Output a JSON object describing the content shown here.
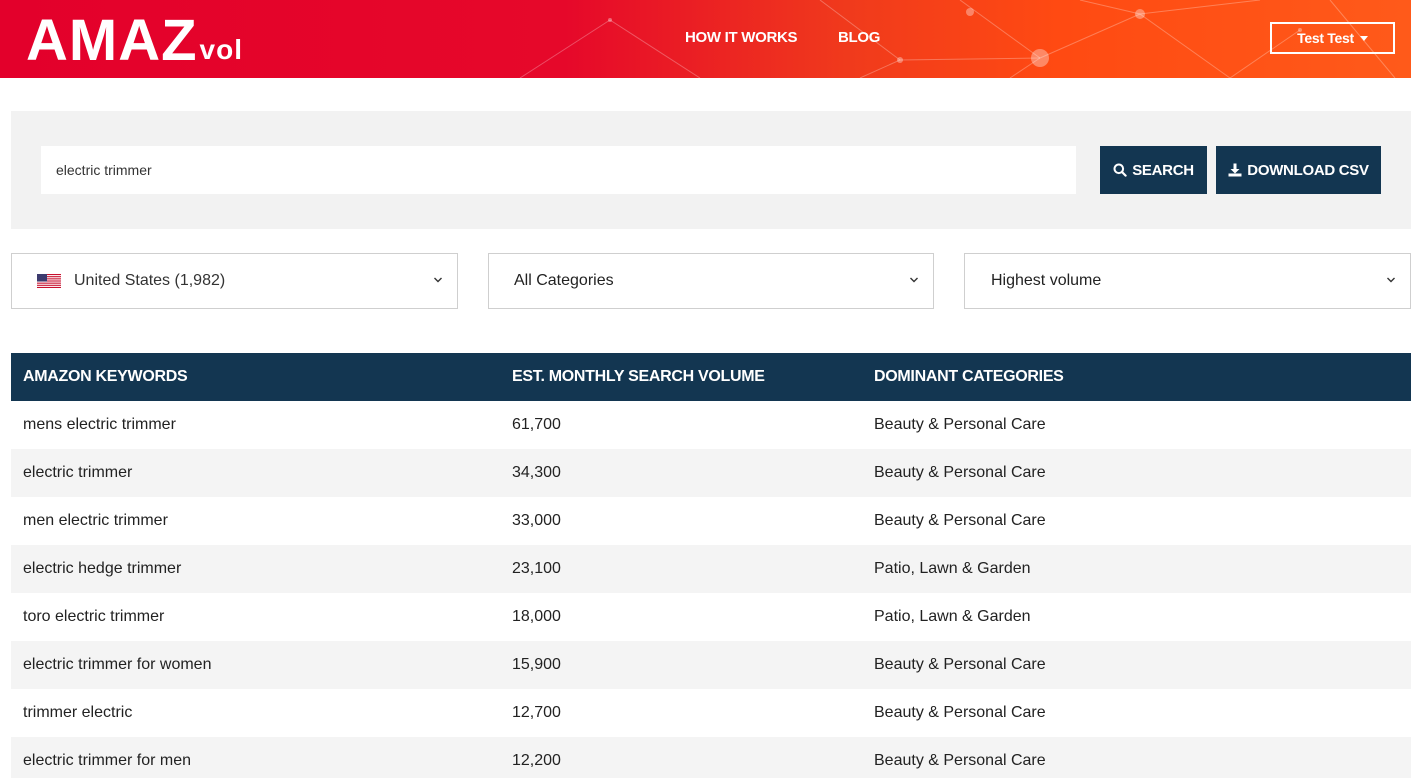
{
  "header": {
    "logo_main": "AMAZ",
    "logo_sub": "vol",
    "nav": [
      "HOW IT WORKS",
      "BLOG"
    ],
    "user_label": "Test Test"
  },
  "search": {
    "value": "electric trimmer",
    "search_label": "SEARCH",
    "download_label": "DOWNLOAD CSV"
  },
  "filters": {
    "country": "United States (1,982)",
    "category": "All Categories",
    "sort": "Highest volume"
  },
  "table": {
    "headers": [
      "AMAZON KEYWORDS",
      "EST. MONTHLY SEARCH VOLUME",
      "DOMINANT CATEGORIES"
    ],
    "rows": [
      {
        "keyword": "mens electric trimmer",
        "volume": "61,700",
        "category": "Beauty & Personal Care"
      },
      {
        "keyword": "electric trimmer",
        "volume": "34,300",
        "category": "Beauty & Personal Care"
      },
      {
        "keyword": "men electric trimmer",
        "volume": "33,000",
        "category": "Beauty & Personal Care"
      },
      {
        "keyword": "electric hedge trimmer",
        "volume": "23,100",
        "category": "Patio, Lawn & Garden"
      },
      {
        "keyword": "toro electric trimmer",
        "volume": "18,000",
        "category": "Patio, Lawn & Garden"
      },
      {
        "keyword": "electric trimmer for women",
        "volume": "15,900",
        "category": "Beauty & Personal Care"
      },
      {
        "keyword": "trimmer electric",
        "volume": "12,700",
        "category": "Beauty & Personal Care"
      },
      {
        "keyword": "electric trimmer for men",
        "volume": "12,200",
        "category": "Beauty & Personal Care"
      }
    ]
  },
  "colors": {
    "header_red": "#e3002b",
    "header_orange": "#ff5a1a",
    "navy": "#133651",
    "panel_gray": "#f2f2f2"
  },
  "icons": [
    "search-icon",
    "download-icon",
    "us-flag-icon",
    "chevron-down-icon",
    "caret-down-icon"
  ]
}
